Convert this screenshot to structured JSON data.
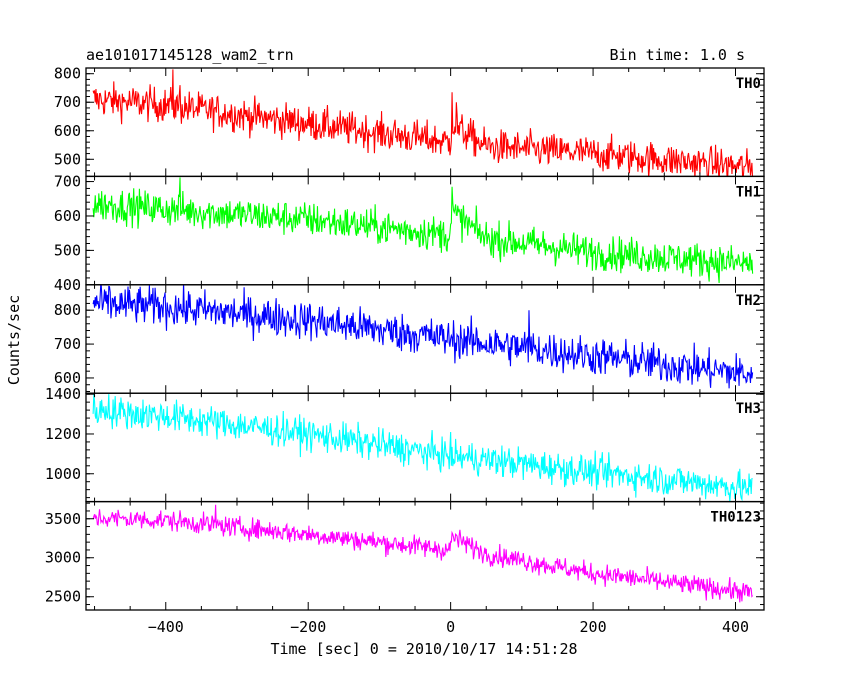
{
  "header": {
    "title": "ae101017145128_wam2_trn",
    "bin_time": "Bin time: 1.0 s"
  },
  "chart_data": {
    "type": "line",
    "title": "ae101017145128_wam2_trn",
    "subtitle": "Bin time: 1.0 s",
    "xlabel": "Time [sec] 0 = 2010/10/17 14:51:28",
    "ylabel": "Counts/sec",
    "xlim": [
      -512,
      440
    ],
    "x_ticks": [
      -400,
      -200,
      0,
      200,
      400
    ],
    "x_range": [
      -502,
      424
    ],
    "grid": false,
    "legend": "none",
    "panels": [
      {
        "name": "TH0",
        "color": "#ff0000",
        "ylim": [
          440,
          820
        ],
        "y_ticks": [
          500,
          600,
          700,
          800
        ],
        "trend": [
          [
            -502,
            710
          ],
          [
            -400,
            690
          ],
          [
            -200,
            625
          ],
          [
            -1,
            560
          ],
          [
            2,
            620
          ],
          [
            50,
            545
          ],
          [
            200,
            520
          ],
          [
            424,
            470
          ]
        ],
        "noise": 30,
        "spikes": [
          [
            -390,
            815
          ],
          [
            -380,
            760
          ],
          [
            2,
            735
          ],
          [
            8,
            700
          ]
        ]
      },
      {
        "name": "TH1",
        "color": "#00ff00",
        "ylim": [
          400,
          715
        ],
        "y_ticks": [
          400,
          500,
          600,
          700
        ],
        "trend": [
          [
            -502,
            635
          ],
          [
            -400,
            620
          ],
          [
            -200,
            590
          ],
          [
            -1,
            545
          ],
          [
            2,
            610
          ],
          [
            50,
            535
          ],
          [
            200,
            495
          ],
          [
            424,
            460
          ]
        ],
        "noise": 25,
        "spikes": [
          [
            -380,
            712
          ],
          [
            2,
            685
          ]
        ]
      },
      {
        "name": "TH2",
        "color": "#0000ff",
        "ylim": [
          555,
          875
        ],
        "y_ticks": [
          600,
          700,
          800
        ],
        "trend": [
          [
            -502,
            820
          ],
          [
            -400,
            810
          ],
          [
            -200,
            770
          ],
          [
            0,
            715
          ],
          [
            200,
            665
          ],
          [
            424,
            610
          ]
        ],
        "noise": 28,
        "spikes": [
          [
            110,
            800
          ],
          [
            -480,
            870
          ]
        ]
      },
      {
        "name": "TH3",
        "color": "#00ffff",
        "ylim": [
          860,
          1405
        ],
        "y_ticks": [
          1000,
          1200,
          1400
        ],
        "trend": [
          [
            -502,
            1320
          ],
          [
            -400,
            1290
          ],
          [
            -200,
            1200
          ],
          [
            0,
            1090
          ],
          [
            200,
            1010
          ],
          [
            424,
            925
          ]
        ],
        "noise": 40,
        "spikes": [
          [
            -480,
            1400
          ]
        ]
      },
      {
        "name": "TH0123",
        "color": "#ff00ff",
        "ylim": [
          2330,
          3720
        ],
        "y_ticks": [
          2500,
          3000,
          3500
        ],
        "trend": [
          [
            -502,
            3510
          ],
          [
            -400,
            3480
          ],
          [
            -200,
            3300
          ],
          [
            -1,
            3100
          ],
          [
            2,
            3270
          ],
          [
            50,
            3050
          ],
          [
            200,
            2800
          ],
          [
            424,
            2550
          ]
        ],
        "noise": 65,
        "spikes": [
          [
            2,
            3320
          ],
          [
            -330,
            3680
          ]
        ]
      }
    ]
  }
}
